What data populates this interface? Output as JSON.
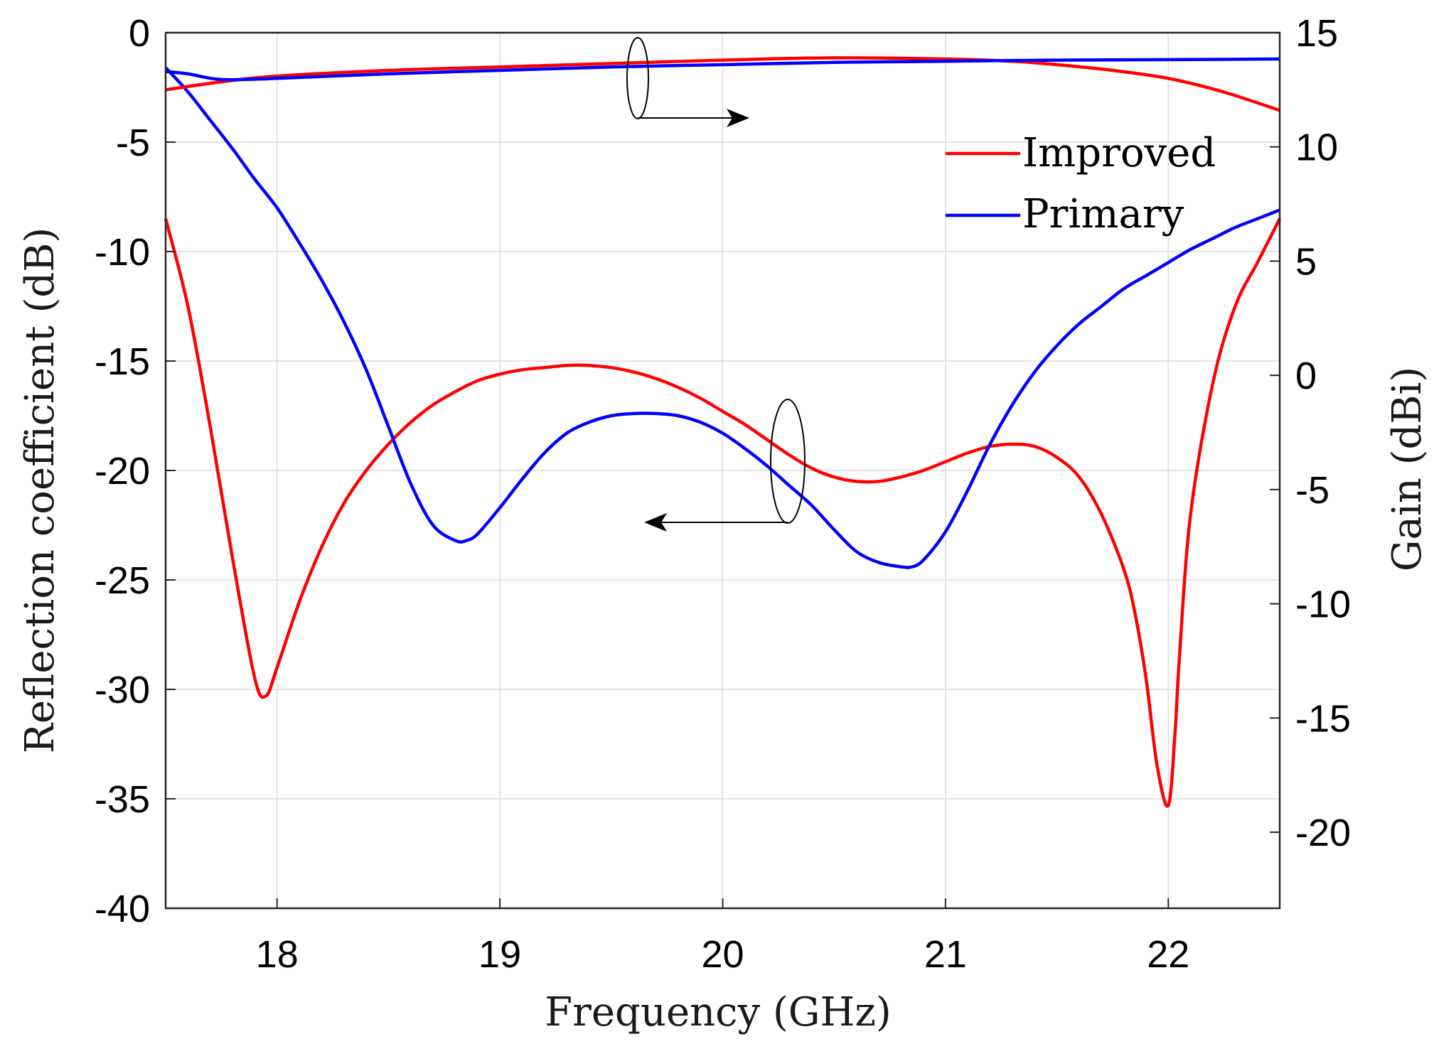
{
  "chart_data": {
    "type": "line",
    "title": "",
    "xlabel": "Frequency (GHz)",
    "ylabel_left": "Reflection coefficient (dB)",
    "ylabel_right": "Gain (dBi)",
    "xlim": [
      17.5,
      22.5
    ],
    "ylim_left": [
      -40,
      0
    ],
    "ylim_right": [
      -23.33,
      15
    ],
    "x_ticks": [
      "18",
      "19",
      "20",
      "21",
      "22"
    ],
    "y_left_ticks": [
      "0",
      "-5",
      "-10",
      "-15",
      "-20",
      "-25",
      "-30",
      "-35",
      "-40"
    ],
    "y_right_ticks": [
      "15",
      "10",
      "5",
      "0",
      "-5",
      "-10",
      "-15",
      "-20"
    ],
    "grid": true,
    "legend_position": "top-right",
    "legend": [
      "Improved",
      "Primary"
    ],
    "colors": {
      "Improved": "#ff0000",
      "Primary": "#0000ff"
    },
    "series": [
      {
        "name": "Improved",
        "axis": "left",
        "quantity": "reflection",
        "color": "#ff0000",
        "x": [
          17.5,
          17.6,
          17.7,
          17.8,
          17.9,
          17.95,
          18.0,
          18.1,
          18.2,
          18.3,
          18.4,
          18.5,
          18.6,
          18.7,
          18.8,
          18.9,
          19.0,
          19.1,
          19.2,
          19.3,
          19.4,
          19.5,
          19.6,
          19.7,
          19.8,
          19.9,
          20.0,
          20.1,
          20.2,
          20.3,
          20.4,
          20.5,
          20.6,
          20.7,
          20.8,
          20.9,
          21.0,
          21.1,
          21.2,
          21.3,
          21.4,
          21.5,
          21.6,
          21.7,
          21.8,
          21.85,
          21.9,
          21.95,
          22.0,
          22.03,
          22.05,
          22.1,
          22.2,
          22.3,
          22.4,
          22.5
        ],
        "values": [
          -8.5,
          -12.5,
          -18,
          -24,
          -29.5,
          -30.3,
          -29,
          -26,
          -23.5,
          -21.5,
          -20,
          -18.8,
          -17.8,
          -17,
          -16.4,
          -15.9,
          -15.6,
          -15.4,
          -15.3,
          -15.2,
          -15.2,
          -15.3,
          -15.5,
          -15.8,
          -16.2,
          -16.7,
          -17.3,
          -17.9,
          -18.6,
          -19.3,
          -19.9,
          -20.3,
          -20.5,
          -20.5,
          -20.3,
          -20.0,
          -19.6,
          -19.2,
          -18.9,
          -18.8,
          -18.9,
          -19.4,
          -20.3,
          -22.0,
          -24.5,
          -26.5,
          -29.5,
          -33.5,
          -35.3,
          -32.0,
          -28.5,
          -22.0,
          -16.0,
          -12.5,
          -10.5,
          -8.5
        ]
      },
      {
        "name": "Primary",
        "axis": "left",
        "quantity": "reflection",
        "color": "#0000ff",
        "x": [
          17.5,
          17.6,
          17.7,
          17.8,
          17.9,
          18.0,
          18.1,
          18.2,
          18.3,
          18.4,
          18.5,
          18.6,
          18.7,
          18.8,
          18.85,
          18.9,
          19.0,
          19.1,
          19.2,
          19.3,
          19.4,
          19.5,
          19.6,
          19.7,
          19.8,
          19.9,
          20.0,
          20.1,
          20.2,
          20.3,
          20.4,
          20.5,
          20.6,
          20.7,
          20.8,
          20.85,
          20.9,
          21.0,
          21.1,
          21.2,
          21.3,
          21.4,
          21.5,
          21.6,
          21.7,
          21.8,
          21.9,
          22.0,
          22.1,
          22.2,
          22.3,
          22.4,
          22.5
        ],
        "values": [
          -1.6,
          -2.7,
          -4.0,
          -5.3,
          -6.7,
          -8.0,
          -9.6,
          -11.3,
          -13.2,
          -15.4,
          -18.0,
          -20.6,
          -22.5,
          -23.2,
          -23.2,
          -22.9,
          -21.7,
          -20.4,
          -19.2,
          -18.3,
          -17.8,
          -17.5,
          -17.4,
          -17.4,
          -17.5,
          -17.8,
          -18.3,
          -19.0,
          -19.8,
          -20.7,
          -21.6,
          -22.7,
          -23.7,
          -24.2,
          -24.4,
          -24.4,
          -24.1,
          -22.8,
          -20.9,
          -18.8,
          -17.0,
          -15.5,
          -14.3,
          -13.3,
          -12.5,
          -11.7,
          -11.1,
          -10.5,
          -9.9,
          -9.4,
          -8.9,
          -8.5,
          -8.1
        ]
      },
      {
        "name": "Improved",
        "axis": "right",
        "quantity": "gain",
        "color": "#ff0000",
        "x": [
          17.5,
          17.75,
          18.0,
          18.5,
          19.0,
          19.5,
          20.0,
          20.5,
          21.0,
          21.3,
          21.5,
          21.75,
          22.0,
          22.25,
          22.5
        ],
        "values": [
          12.5,
          12.85,
          13.1,
          13.35,
          13.5,
          13.65,
          13.8,
          13.9,
          13.85,
          13.75,
          13.6,
          13.35,
          13.0,
          12.4,
          11.6
        ]
      },
      {
        "name": "Primary",
        "axis": "right",
        "quantity": "gain",
        "color": "#0000ff",
        "x": [
          17.5,
          17.6,
          17.75,
          18.0,
          18.5,
          19.0,
          19.5,
          20.0,
          20.5,
          21.0,
          21.5,
          22.0,
          22.5
        ],
        "values": [
          13.3,
          13.2,
          12.95,
          13.0,
          13.2,
          13.35,
          13.5,
          13.6,
          13.7,
          13.75,
          13.8,
          13.82,
          13.85
        ]
      }
    ]
  }
}
